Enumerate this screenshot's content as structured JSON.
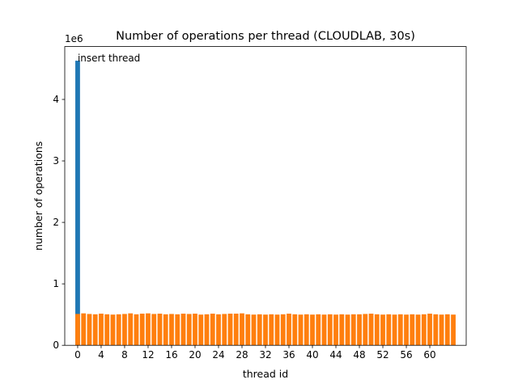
{
  "chart_data": {
    "type": "bar",
    "title": "Number of operations per thread (CLOUDLAB, 30s)",
    "xlabel": "thread id",
    "ylabel": "number of operations",
    "y_multiplier_label": "1e6",
    "ylim": [
      0,
      4860000
    ],
    "xlim": [
      -2.2,
      66.2
    ],
    "x_ticks": [
      0,
      4,
      8,
      12,
      16,
      20,
      24,
      28,
      32,
      36,
      40,
      44,
      48,
      52,
      56,
      60
    ],
    "y_ticks": [
      0,
      1,
      2,
      3,
      4
    ],
    "grid": false,
    "annotation": {
      "text": "insert thread",
      "x": 0,
      "y": 4620000
    },
    "series": [
      {
        "color": "#1f77b4",
        "x": [
          0
        ],
        "values": [
          4630000
        ]
      },
      {
        "color": "#ff7f0e",
        "x": [
          0,
          1,
          2,
          3,
          4,
          5,
          6,
          7,
          8,
          9,
          10,
          11,
          12,
          13,
          14,
          15,
          16,
          17,
          18,
          19,
          20,
          21,
          22,
          23,
          24,
          25,
          26,
          27,
          28,
          29,
          30,
          31,
          32,
          33,
          34,
          35,
          36,
          37,
          38,
          39,
          40,
          41,
          42,
          43,
          44,
          45,
          46,
          47,
          48,
          49,
          50,
          51,
          52,
          53,
          54,
          55,
          56,
          57,
          58,
          59,
          60,
          61,
          62,
          63,
          64
        ],
        "values": [
          510000,
          520000,
          510000,
          505000,
          515000,
          505000,
          500000,
          505000,
          510000,
          520000,
          505000,
          515000,
          520000,
          510000,
          515000,
          505000,
          510000,
          505000,
          515000,
          510000,
          515000,
          500000,
          505000,
          515000,
          505000,
          510000,
          515000,
          515000,
          520000,
          505000,
          500000,
          505000,
          500000,
          505000,
          500000,
          505000,
          515000,
          505000,
          500000,
          505000,
          500000,
          505000,
          500000,
          505000,
          500000,
          505000,
          500000,
          505000,
          505000,
          510000,
          515000,
          505000,
          500000,
          505000,
          500000,
          505000,
          500000,
          505000,
          500000,
          505000,
          515000,
          505000,
          500000,
          505000,
          500000
        ]
      }
    ]
  }
}
